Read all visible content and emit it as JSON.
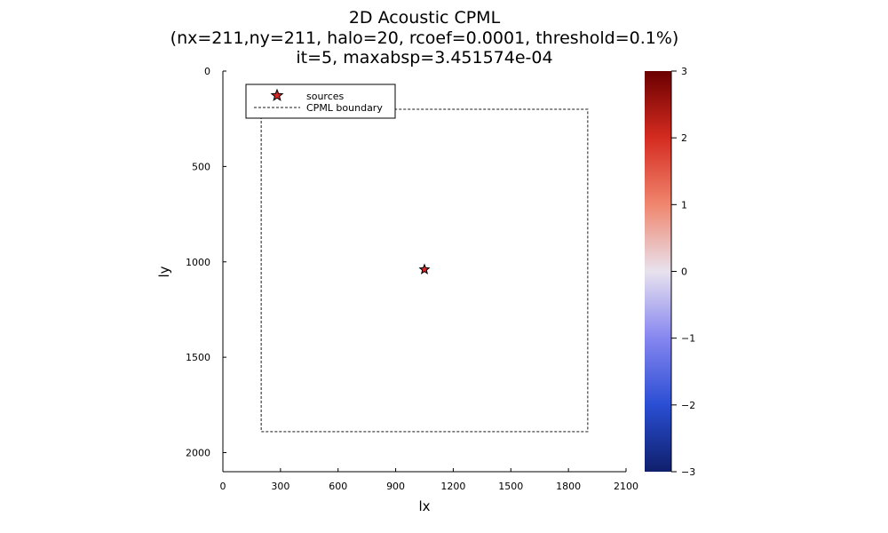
{
  "chart_data": {
    "type": "heatmap",
    "title": [
      "2D Acoustic CPML",
      "(nx=211,ny=211, halo=20, rcoef=0.0001, threshold=0.1%)",
      "it=5, maxabsp=3.451574e-04"
    ],
    "xlabel": "lx",
    "ylabel": "ly",
    "xlim": [
      0,
      2100
    ],
    "ylim": [
      0,
      2100
    ],
    "y_inverted": true,
    "xticks": [
      0,
      300,
      600,
      900,
      1200,
      1500,
      1800,
      2100
    ],
    "yticks": [
      0,
      500,
      1000,
      1500,
      2000
    ],
    "grid": false,
    "legend_placement": "top-left",
    "series": [
      {
        "name": "sources",
        "kind": "scatter",
        "marker": "star",
        "color": "#d62728",
        "points": [
          {
            "x": 1050,
            "y": 1040
          }
        ]
      },
      {
        "name": "CPML boundary",
        "kind": "line",
        "style": "dashed",
        "color": "#666666",
        "points": [
          {
            "x": 200,
            "y": 200
          },
          {
            "x": 1900,
            "y": 200
          },
          {
            "x": 1900,
            "y": 1890
          },
          {
            "x": 200,
            "y": 1890
          },
          {
            "x": 200,
            "y": 200
          }
        ]
      }
    ],
    "colorbar": {
      "range": [
        -3,
        3
      ],
      "ticks": [
        3,
        2,
        1,
        0,
        -1,
        -2,
        -3
      ],
      "tick_labels": [
        "3",
        "2",
        "1",
        "0",
        "−1",
        "−2",
        "−3"
      ],
      "colormap": [
        "#0f1f6b",
        "#2a4ed3",
        "#8686f0",
        "#e8e2ee",
        "#f0866e",
        "#d52b20",
        "#6a0000"
      ]
    }
  }
}
